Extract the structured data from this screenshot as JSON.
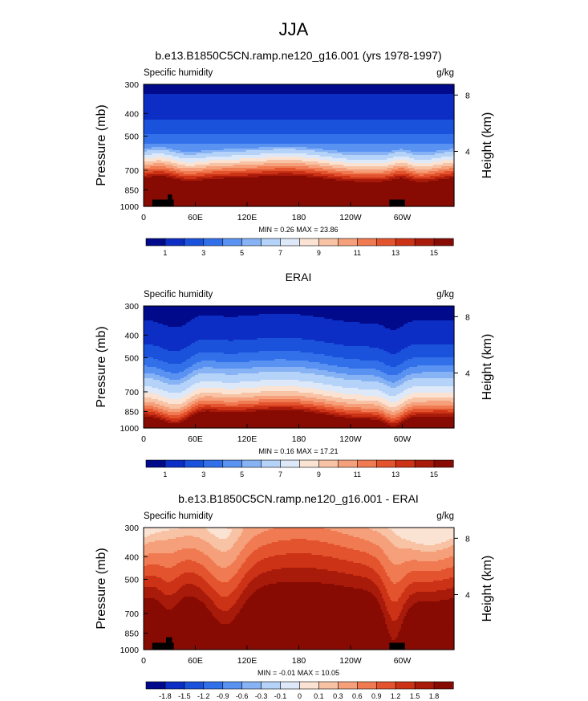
{
  "figure": {
    "title": "JJA"
  },
  "chart_data": [
    {
      "type": "heatmap",
      "title": "b.e13.B1850C5CN.ramp.ne120_g16.001 (yrs 1978-1997)",
      "left_label": "Specific humidity",
      "unit_label": "g/kg",
      "ylabel": "Pressure (mb)",
      "ylabel_right": "Height (km)",
      "x_ticks": [
        "0",
        "60E",
        "120E",
        "180",
        "120W",
        "60W"
      ],
      "x_tick_lons": [
        0,
        60,
        120,
        180,
        240,
        300
      ],
      "xlim": [
        0,
        360
      ],
      "y_ticks": [
        "300",
        "400",
        "500",
        "700",
        "850",
        "1000"
      ],
      "y_tick_values": [
        300,
        400,
        500,
        700,
        850,
        1000
      ],
      "ylim": [
        300,
        1000
      ],
      "y_scale": "log",
      "right_ticks": [
        "8",
        "4"
      ],
      "right_tick_heights": [
        8,
        4
      ],
      "stats": "MIN =   0.26   MAX =  23.86",
      "colorbar_labels": [
        "1",
        "3",
        "5",
        "7",
        "9",
        "11",
        "13",
        "15"
      ],
      "colorbar_colors": [
        "#000a8a",
        "#0c2ec4",
        "#1a52dc",
        "#3270ea",
        "#5a92f2",
        "#87b3f5",
        "#b5d2f8",
        "#dde9f8",
        "#fbe3d3",
        "#f8c3a5",
        "#f5a07a",
        "#f07b52",
        "#e3542e",
        "#cc3216",
        "#a81a09",
        "#870b03"
      ],
      "levels": [
        0.5,
        1,
        1.5,
        2,
        2.5,
        3,
        4,
        5,
        6,
        7,
        8,
        9,
        10,
        11,
        12,
        13
      ],
      "surface_level": 15.5,
      "top_level": 0.45,
      "terrain_blocks": [
        {
          "lon_start": 10,
          "lon_end": 35,
          "pressure_top": 935
        },
        {
          "lon_start": 28,
          "lon_end": 33,
          "pressure_top": 890
        },
        {
          "lon_start": 285,
          "lon_end": 303,
          "pressure_top": 935
        }
      ]
    },
    {
      "type": "heatmap",
      "title": "ERAI",
      "left_label": "Specific humidity",
      "unit_label": "g/kg",
      "ylabel": "Pressure (mb)",
      "ylabel_right": "Height (km)",
      "x_ticks": [
        "0",
        "60E",
        "120E",
        "180",
        "120W",
        "60W"
      ],
      "x_tick_lons": [
        0,
        60,
        120,
        180,
        240,
        300
      ],
      "xlim": [
        0,
        360
      ],
      "y_ticks": [
        "300",
        "400",
        "500",
        "700",
        "850",
        "1000"
      ],
      "y_tick_values": [
        300,
        400,
        500,
        700,
        850,
        1000
      ],
      "ylim": [
        300,
        1000
      ],
      "y_scale": "log",
      "right_ticks": [
        "8",
        "4"
      ],
      "right_tick_heights": [
        8,
        4
      ],
      "stats": "MIN =   0.16   MAX =  17.21",
      "colorbar_labels": [
        "1",
        "3",
        "5",
        "7",
        "9",
        "11",
        "13",
        "15"
      ],
      "colorbar_colors": [
        "#000a8a",
        "#0c2ec4",
        "#1a52dc",
        "#3270ea",
        "#5a92f2",
        "#87b3f5",
        "#b5d2f8",
        "#dde9f8",
        "#fbe3d3",
        "#f8c3a5",
        "#f5a07a",
        "#f07b52",
        "#e3542e",
        "#cc3216",
        "#a81a09",
        "#870b03"
      ],
      "levels": [
        0.5,
        1,
        1.5,
        2,
        2.5,
        3,
        4,
        5,
        6,
        7,
        8,
        9,
        10,
        11,
        12,
        13
      ],
      "surface_level": 14.5,
      "top_level": 0.45,
      "terrain_blocks": []
    },
    {
      "type": "heatmap",
      "title": "b.e13.B1850C5CN.ramp.ne120_g16.001 - ERAI",
      "left_label": "Specific humidity",
      "unit_label": "g/kg",
      "ylabel": "Pressure (mb)",
      "ylabel_right": "Height (km)",
      "x_ticks": [
        "0",
        "60E",
        "120E",
        "180",
        "120W",
        "60W"
      ],
      "x_tick_lons": [
        0,
        60,
        120,
        180,
        240,
        300
      ],
      "xlim": [
        0,
        360
      ],
      "y_ticks": [
        "300",
        "400",
        "500",
        "700",
        "850",
        "1000"
      ],
      "y_tick_values": [
        300,
        400,
        500,
        700,
        850,
        1000
      ],
      "ylim": [
        300,
        1000
      ],
      "y_scale": "log",
      "right_ticks": [
        "8",
        "4"
      ],
      "right_tick_heights": [
        8,
        4
      ],
      "stats": "MIN =  -0.01   MAX =  10.05",
      "colorbar_labels": [
        "-1.8",
        "-1.5",
        "-1.2",
        "-0.9",
        "-0.6",
        "-0.3",
        "-0.1",
        "0",
        "0.1",
        "0.3",
        "0.6",
        "0.9",
        "1.2",
        "1.5",
        "1.8"
      ],
      "colorbar_colors": [
        "#000a8a",
        "#0c2ec4",
        "#1a52dc",
        "#3270ea",
        "#5a92f2",
        "#87b3f5",
        "#b5d2f8",
        "#dde9f8",
        "#fbe3d3",
        "#f8c3a5",
        "#f5a07a",
        "#f07b52",
        "#e3542e",
        "#cc3216",
        "#a81a09",
        "#870b03"
      ],
      "levels": [
        0.1,
        0.3,
        0.6,
        0.9,
        1.2,
        1.5,
        1.8
      ],
      "level_colors": [
        "#fbe3d3",
        "#f8c3a5",
        "#f5a07a",
        "#f07b52",
        "#e3542e",
        "#cc3216",
        "#a81a09"
      ],
      "background_color": "#870b03",
      "terrain_blocks": [
        {
          "lon_start": 10,
          "lon_end": 35,
          "pressure_top": 935
        },
        {
          "lon_start": 26,
          "lon_end": 33,
          "pressure_top": 885
        },
        {
          "lon_start": 285,
          "lon_end": 303,
          "pressure_top": 935
        }
      ]
    }
  ]
}
